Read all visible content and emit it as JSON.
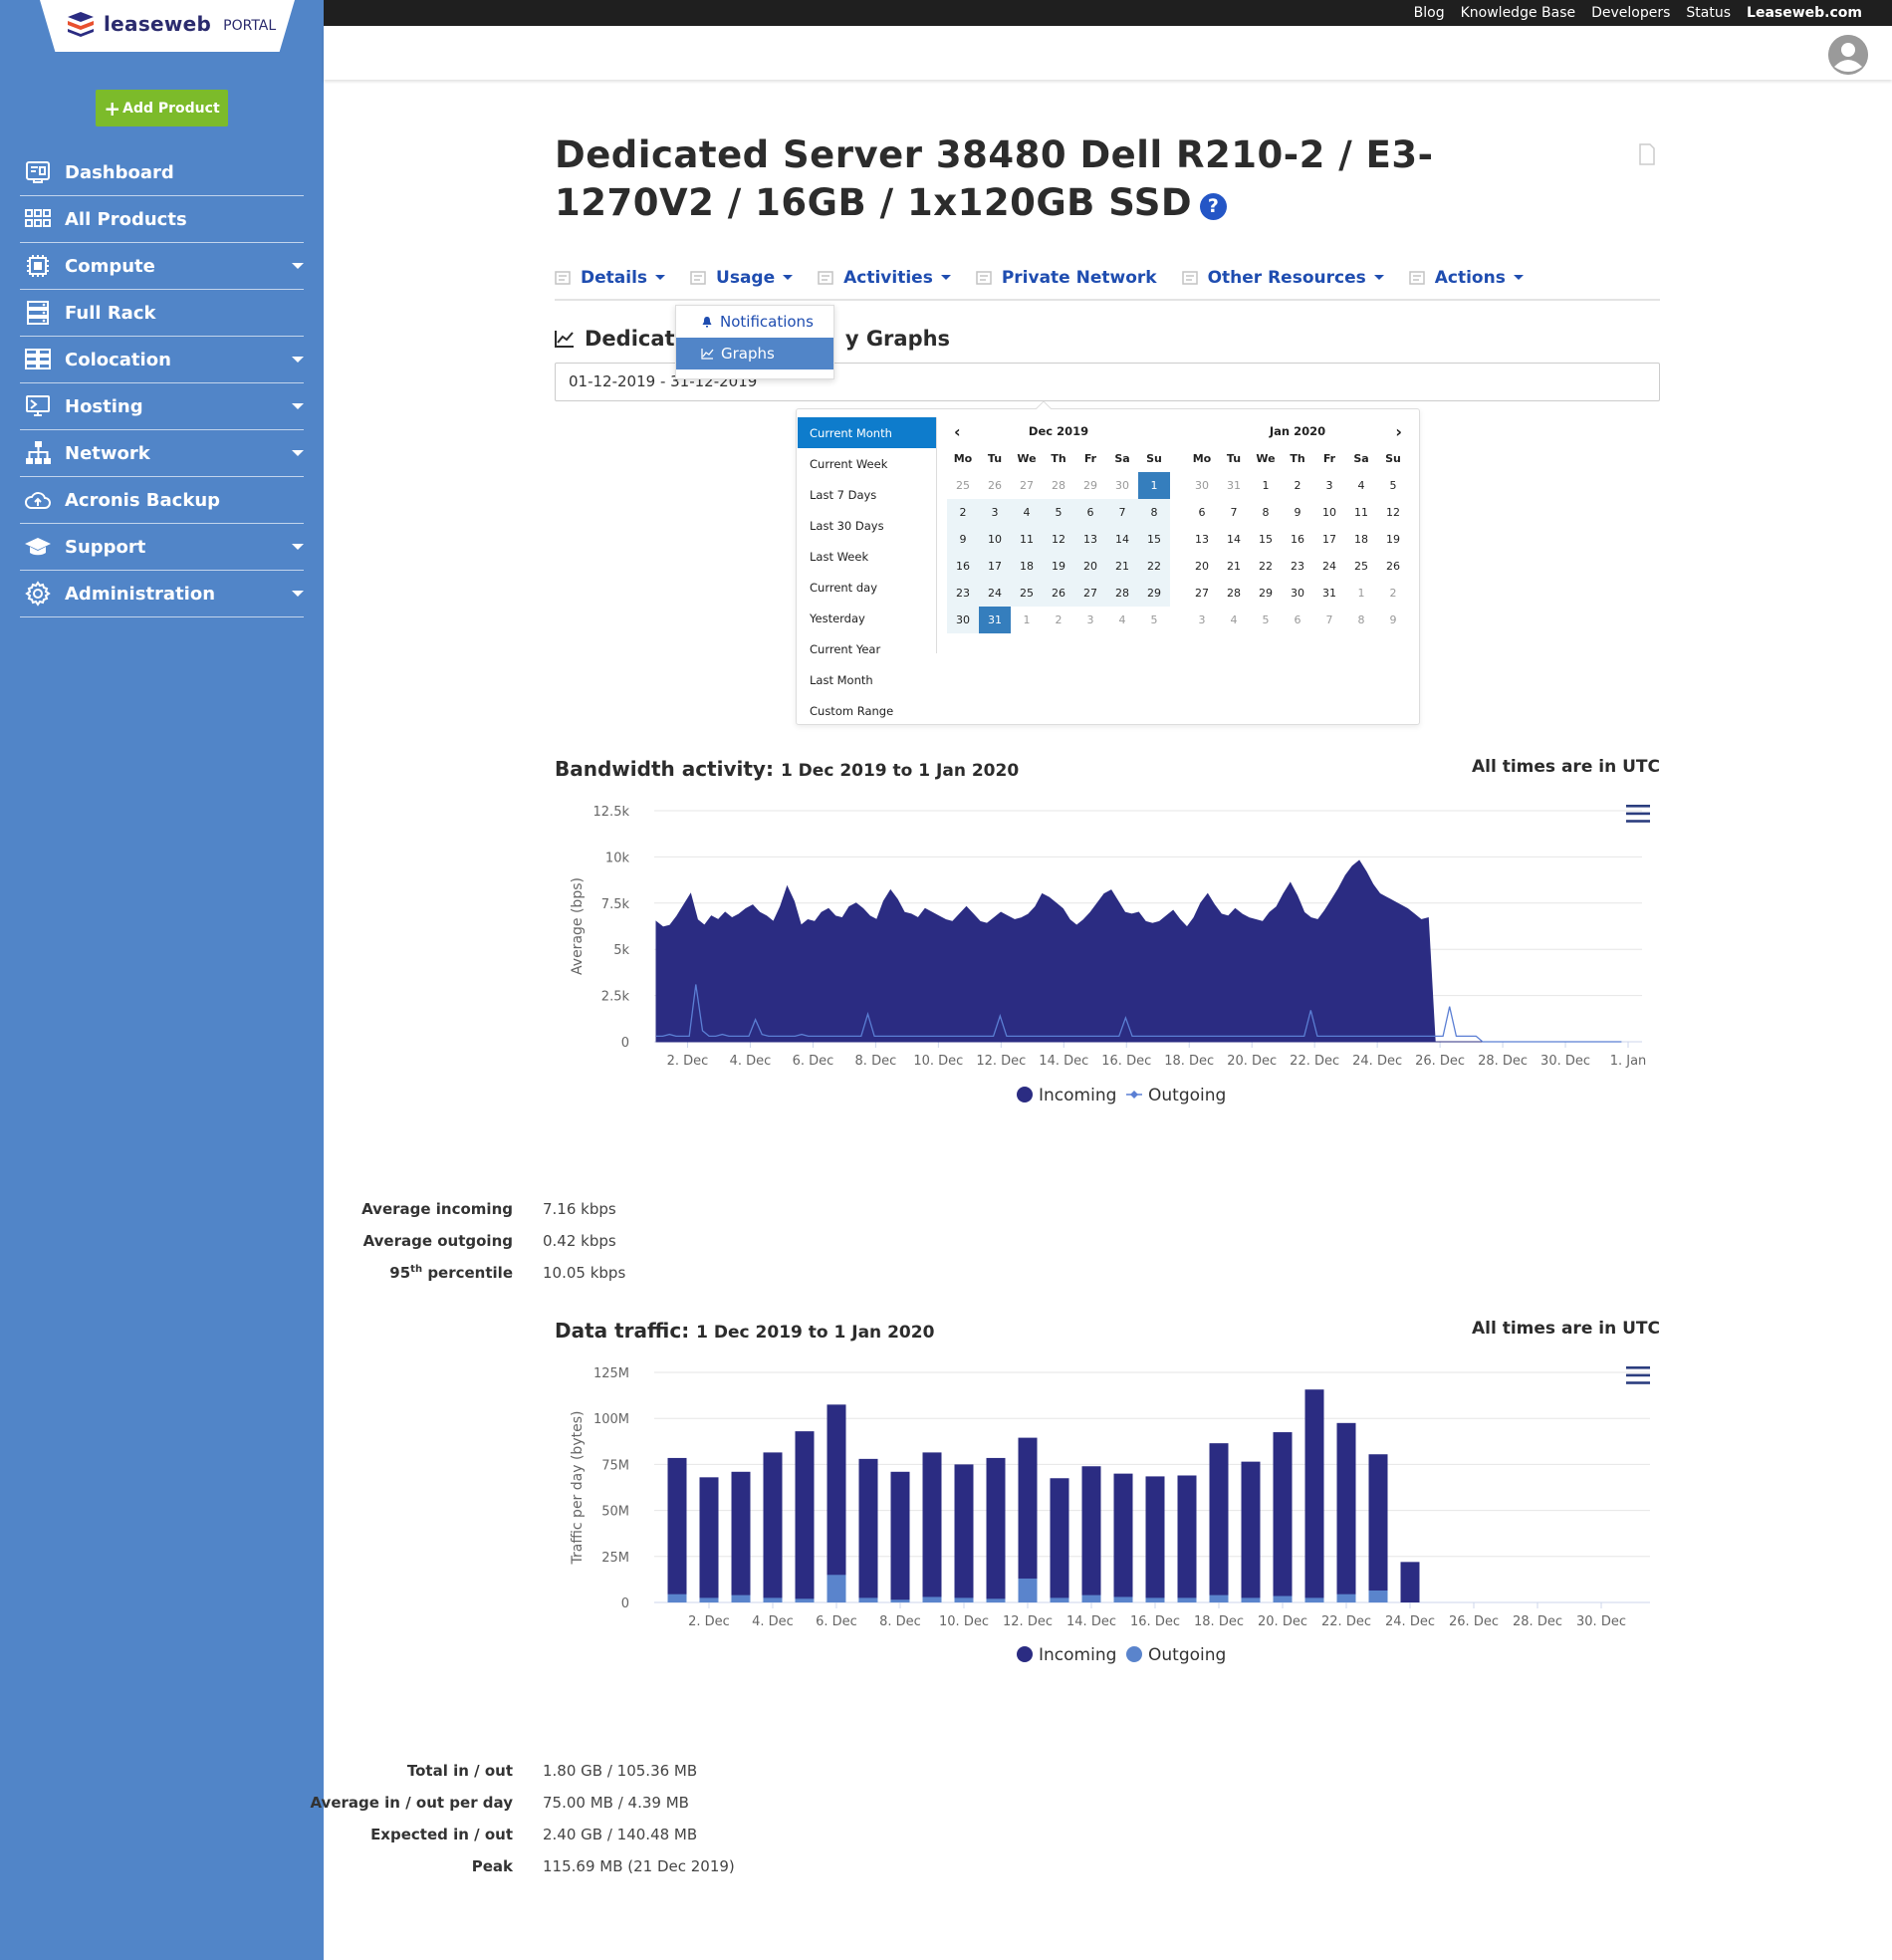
{
  "top_links": [
    "Blog",
    "Knowledge Base",
    "Developers",
    "Status",
    "Leaseweb.com"
  ],
  "brand": {
    "name": "leaseweb",
    "portal": "PORTAL"
  },
  "sidebar": {
    "add_product": "Add Product",
    "items": [
      {
        "label": "Dashboard",
        "icon": "dashboard-icon",
        "dropdown": false
      },
      {
        "label": "All Products",
        "icon": "grid-icon",
        "dropdown": false
      },
      {
        "label": "Compute",
        "icon": "chip-icon",
        "dropdown": true
      },
      {
        "label": "Full Rack",
        "icon": "rack-icon",
        "dropdown": false
      },
      {
        "label": "Colocation",
        "icon": "colocation-icon",
        "dropdown": true
      },
      {
        "label": "Hosting",
        "icon": "monitor-icon",
        "dropdown": true
      },
      {
        "label": "Network",
        "icon": "network-icon",
        "dropdown": true
      },
      {
        "label": "Acronis Backup",
        "icon": "cloud-upload-icon",
        "dropdown": false
      },
      {
        "label": "Support",
        "icon": "graduation-cap-icon",
        "dropdown": true
      },
      {
        "label": "Administration",
        "icon": "gear-icon",
        "dropdown": true
      }
    ]
  },
  "page": {
    "title": "Dedicated Server 38480 Dell R210-2 / E3-1270V2 / 16GB / 1x120GB SSD",
    "help": "?"
  },
  "tabs": [
    {
      "label": "Details",
      "dropdown": true
    },
    {
      "label": "Usage",
      "dropdown": true
    },
    {
      "label": "Activities",
      "dropdown": true
    },
    {
      "label": "Private Network",
      "dropdown": false
    },
    {
      "label": "Other Resources",
      "dropdown": true
    },
    {
      "label": "Actions",
      "dropdown": true
    }
  ],
  "usage_menu": {
    "items": [
      "Notifications",
      "Graphs"
    ],
    "selected": "Graphs"
  },
  "section": {
    "heading_left": "Dedicate",
    "heading_right": "y Graphs"
  },
  "date_range": {
    "value": "01-12-2019 - 31-12-2019"
  },
  "picker": {
    "ranges": [
      "Current Month",
      "Current Week",
      "Last 7 Days",
      "Last 30 Days",
      "Last Week",
      "Current day",
      "Yesterday",
      "Current Year",
      "Last Month",
      "Custom Range"
    ],
    "selected_range": "Current Month",
    "weekdays": [
      "Mo",
      "Tu",
      "We",
      "Th",
      "Fr",
      "Sa",
      "Su"
    ],
    "calendars": [
      {
        "month": "Dec 2019",
        "days": [
          "25",
          "26",
          "27",
          "28",
          "29",
          "30",
          "1",
          "2",
          "3",
          "4",
          "5",
          "6",
          "7",
          "8",
          "9",
          "10",
          "11",
          "12",
          "13",
          "14",
          "15",
          "16",
          "17",
          "18",
          "19",
          "20",
          "21",
          "22",
          "23",
          "24",
          "25",
          "26",
          "27",
          "28",
          "29",
          "30",
          "31",
          "1",
          "2",
          "3",
          "4",
          "5"
        ],
        "first_in_month": 6,
        "last_in_month": 36,
        "start": 6,
        "end": 36
      },
      {
        "month": "Jan 2020",
        "days": [
          "30",
          "31",
          "1",
          "2",
          "3",
          "4",
          "5",
          "6",
          "7",
          "8",
          "9",
          "10",
          "11",
          "12",
          "13",
          "14",
          "15",
          "16",
          "17",
          "18",
          "19",
          "20",
          "21",
          "22",
          "23",
          "24",
          "25",
          "26",
          "27",
          "28",
          "29",
          "30",
          "31",
          "1",
          "2",
          "3",
          "4",
          "5",
          "6",
          "7",
          "8",
          "9"
        ],
        "first_in_month": 2,
        "last_in_month": 32,
        "start": -1,
        "end": -1
      }
    ]
  },
  "bandwidth": {
    "title": "Bandwidth activity:",
    "subtitle": "1 Dec 2019 to 1 Jan 2020",
    "utc": "All times are in UTC",
    "stats": [
      {
        "label": "Average incoming",
        "value": "7.16 kbps"
      },
      {
        "label": "Average outgoing",
        "value": "0.42 kbps"
      },
      {
        "label": "95th percentile",
        "value": "10.05 kbps"
      }
    ]
  },
  "traffic": {
    "title": "Data traffic:",
    "subtitle": "1 Dec 2019 to 1 Jan 2020",
    "utc": "All times are in UTC",
    "stats": [
      {
        "label": "Total in / out",
        "value": "1.80 GB / 105.36 MB"
      },
      {
        "label": "Average in / out per day",
        "value": "75.00 MB / 4.39 MB"
      },
      {
        "label": "Expected in / out",
        "value": "2.40 GB / 140.48 MB"
      },
      {
        "label": "Peak",
        "value": "115.69 MB (21 Dec 2019)"
      }
    ]
  },
  "chart_data": [
    {
      "type": "area",
      "ylabel": "Average (bps)",
      "ylim": [
        0,
        12500
      ],
      "yticks": [
        "0",
        "2.5k",
        "5k",
        "7.5k",
        "10k",
        "12.5k"
      ],
      "xticks": [
        "2. Dec",
        "4. Dec",
        "6. Dec",
        "8. Dec",
        "10. Dec",
        "12. Dec",
        "14. Dec",
        "16. Dec",
        "18. Dec",
        "20. Dec",
        "22. Dec",
        "24. Dec",
        "26. Dec",
        "28. Dec",
        "30. Dec",
        "1. Jan"
      ],
      "grid": true,
      "legend": "bottom",
      "x_start": "2019-12-01",
      "series": [
        {
          "name": "Incoming",
          "color": "#2b2c82",
          "values": [
            6500,
            6200,
            6300,
            6800,
            7400,
            8000,
            6600,
            6300,
            6800,
            6600,
            7000,
            6700,
            6900,
            7200,
            7400,
            7000,
            6800,
            6500,
            7300,
            8400,
            7600,
            6300,
            6600,
            6500,
            7000,
            7200,
            6800,
            6700,
            7300,
            7500,
            7200,
            6800,
            6600,
            7600,
            8200,
            7700,
            7000,
            6900,
            6700,
            7200,
            7000,
            6800,
            6600,
            6500,
            6900,
            7300,
            6900,
            6500,
            6400,
            6700,
            7000,
            6800,
            6600,
            6700,
            6900,
            7300,
            8000,
            7800,
            7500,
            7200,
            6600,
            6300,
            6600,
            7000,
            7500,
            8000,
            8200,
            7600,
            7000,
            6900,
            7000,
            6500,
            6400,
            6500,
            6800,
            7100,
            6600,
            6200,
            6700,
            7500,
            8000,
            7400,
            6900,
            6800,
            7200,
            6900,
            6700,
            6600,
            6500,
            7000,
            7300,
            8000,
            8600,
            7900,
            7000,
            6700,
            6600,
            7100,
            7700,
            8300,
            9000,
            9500,
            9800,
            9200,
            8500,
            8000,
            7800,
            7600,
            7400,
            7200,
            6900,
            6600,
            6700,
            0,
            0,
            0,
            0,
            0,
            0,
            0,
            0,
            0,
            0,
            0,
            0,
            0,
            0,
            0,
            0,
            0,
            0,
            0,
            0,
            0,
            0,
            0,
            0,
            0,
            0,
            0,
            0
          ]
        },
        {
          "name": "Outgoing",
          "color": "#5b7fd4",
          "values": [
            300,
            300,
            400,
            300,
            300,
            300,
            3100,
            600,
            300,
            300,
            400,
            300,
            300,
            300,
            300,
            1200,
            400,
            300,
            300,
            300,
            300,
            300,
            400,
            300,
            300,
            300,
            300,
            300,
            300,
            300,
            300,
            300,
            1500,
            300,
            300,
            300,
            300,
            300,
            300,
            300,
            300,
            300,
            300,
            300,
            300,
            300,
            300,
            300,
            300,
            300,
            300,
            300,
            1400,
            300,
            300,
            300,
            300,
            300,
            300,
            300,
            300,
            300,
            300,
            300,
            300,
            300,
            300,
            300,
            300,
            300,
            300,
            1300,
            300,
            300,
            300,
            300,
            300,
            300,
            300,
            300,
            300,
            300,
            300,
            300,
            300,
            300,
            300,
            300,
            300,
            300,
            300,
            300,
            300,
            300,
            300,
            300,
            300,
            300,
            300,
            1700,
            300,
            300,
            300,
            300,
            300,
            300,
            300,
            300,
            300,
            300,
            300,
            300,
            300,
            300,
            300,
            300,
            300,
            300,
            300,
            300,
            1900,
            300,
            300,
            300,
            300,
            0,
            0,
            0,
            0,
            0,
            0,
            0,
            0,
            0,
            0,
            0,
            0,
            0,
            0,
            0,
            0,
            0,
            0,
            0,
            0,
            0,
            0
          ]
        }
      ]
    },
    {
      "type": "bar",
      "ylabel": "Traffic per day (bytes)",
      "ylim": [
        0,
        125000000
      ],
      "yticks": [
        "0",
        "25M",
        "50M",
        "75M",
        "100M",
        "125M"
      ],
      "xticks": [
        "2. Dec",
        "4. Dec",
        "6. Dec",
        "8. Dec",
        "10. Dec",
        "12. Dec",
        "14. Dec",
        "16. Dec",
        "18. Dec",
        "20. Dec",
        "22. Dec",
        "24. Dec",
        "26. Dec",
        "28. Dec",
        "30. Dec"
      ],
      "grid": true,
      "legend": "bottom",
      "categories": [
        "1 Dec",
        "2 Dec",
        "3 Dec",
        "4 Dec",
        "5 Dec",
        "6 Dec",
        "7 Dec",
        "8 Dec",
        "9 Dec",
        "10 Dec",
        "11 Dec",
        "12 Dec",
        "13 Dec",
        "14 Dec",
        "15 Dec",
        "16 Dec",
        "17 Dec",
        "18 Dec",
        "19 Dec",
        "20 Dec",
        "21 Dec",
        "22 Dec",
        "23 Dec",
        "24 Dec",
        "25 Dec",
        "26 Dec",
        "27 Dec",
        "28 Dec",
        "29 Dec",
        "30 Dec",
        "31 Dec"
      ],
      "series": [
        {
          "name": "Incoming",
          "color": "#2b2c82",
          "values": [
            78500000,
            68000000,
            71000000,
            81500000,
            93000000,
            107500000,
            78000000,
            71000000,
            81500000,
            75000000,
            78500000,
            89500000,
            67500000,
            74000000,
            70000000,
            68500000,
            69000000,
            86500000,
            76500000,
            92500000,
            115690000,
            97500000,
            80500000,
            22000000,
            0,
            0,
            0,
            0,
            0,
            0,
            0
          ]
        },
        {
          "name": "Outgoing",
          "color": "#5a84cc",
          "values": [
            4500000,
            2500000,
            4000000,
            2500000,
            2000000,
            15000000,
            2500000,
            1500000,
            3000000,
            2500000,
            2000000,
            13000000,
            2500000,
            4000000,
            3000000,
            2500000,
            2500000,
            4000000,
            2500000,
            3500000,
            2500000,
            4500000,
            6500000,
            0,
            0,
            0,
            0,
            0,
            0,
            0,
            0
          ]
        }
      ]
    }
  ]
}
